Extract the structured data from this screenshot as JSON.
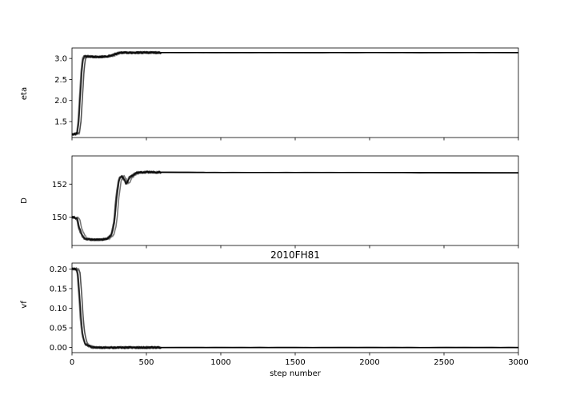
{
  "chart_data": {
    "type": "line",
    "title": "2010FH81",
    "xlabel": "step number",
    "xlim": [
      0,
      3000
    ],
    "xticks": [
      0,
      500,
      1000,
      1500,
      2000,
      2500,
      3000
    ],
    "n_walkers": 10,
    "line_color": "#000000",
    "panels": [
      {
        "ylabel": "eta",
        "ylim": [
          1.12,
          3.25
        ],
        "yticks": [
          "1.5",
          "2.0",
          "2.5",
          "3.0"
        ],
        "yticks_val": [
          1.5,
          2.0,
          2.5,
          3.0
        ],
        "x": [
          0,
          30,
          50,
          60,
          70,
          80,
          90,
          100,
          120,
          150,
          200,
          250,
          280,
          300,
          320,
          350,
          400,
          500,
          1000,
          2000,
          3000
        ],
        "y": [
          1.2,
          1.2,
          1.22,
          1.5,
          2.1,
          2.7,
          3.0,
          3.05,
          3.05,
          3.04,
          3.04,
          3.05,
          3.07,
          3.1,
          3.13,
          3.14,
          3.14,
          3.14,
          3.14,
          3.14,
          3.14
        ]
      },
      {
        "ylabel": "D",
        "ylim": [
          148.3,
          153.7
        ],
        "yticks": [
          "150",
          "152"
        ],
        "yticks_val": [
          150,
          152
        ],
        "x": [
          0,
          30,
          50,
          60,
          80,
          100,
          150,
          200,
          250,
          280,
          300,
          310,
          330,
          350,
          380,
          400,
          450,
          500,
          1000,
          2000,
          3000
        ],
        "y": [
          150.0,
          150.0,
          149.9,
          149.4,
          148.95,
          148.7,
          148.65,
          148.65,
          148.7,
          148.95,
          149.8,
          151.0,
          152.3,
          152.5,
          152.0,
          152.4,
          152.7,
          152.72,
          152.7,
          152.7,
          152.68
        ]
      },
      {
        "ylabel": "vf",
        "ylim": [
          -0.013,
          0.215
        ],
        "yticks": [
          "0.00",
          "0.05",
          "0.10",
          "0.15",
          "0.20"
        ],
        "yticks_val": [
          0,
          0.05,
          0.1,
          0.15,
          0.2
        ],
        "x": [
          0,
          20,
          40,
          50,
          60,
          70,
          80,
          90,
          100,
          120,
          150,
          200,
          300,
          500,
          1000,
          2000,
          3000
        ],
        "y": [
          0.2,
          0.2,
          0.2,
          0.19,
          0.14,
          0.08,
          0.04,
          0.02,
          0.01,
          0.004,
          0.0,
          0.0,
          0.0,
          0.0,
          0.0,
          0.0,
          0.0
        ]
      }
    ]
  }
}
